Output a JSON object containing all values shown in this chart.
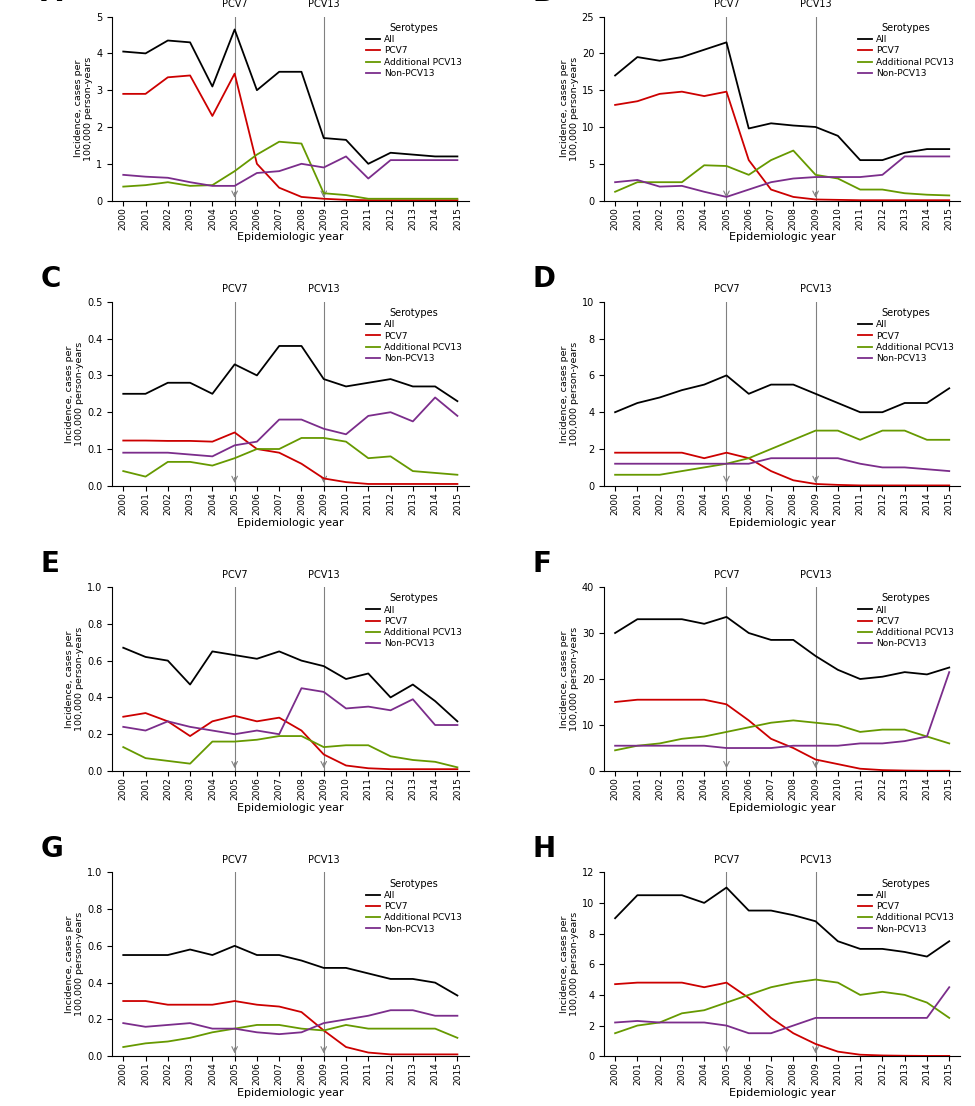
{
  "years": [
    2000,
    2001,
    2002,
    2003,
    2004,
    2005,
    2006,
    2007,
    2008,
    2009,
    2010,
    2011,
    2012,
    2013,
    2014,
    2015
  ],
  "pcv7_line": 2005,
  "pcv13_line": 2009,
  "panels": {
    "A": {
      "ylim": [
        0,
        5
      ],
      "yticks": [
        0,
        1,
        2,
        3,
        4,
        5
      ],
      "All": [
        4.05,
        4.0,
        4.35,
        4.3,
        3.1,
        4.65,
        3.0,
        3.5,
        3.5,
        1.7,
        1.65,
        1.0,
        1.3,
        1.25,
        1.2,
        1.2
      ],
      "PCV7": [
        2.9,
        2.9,
        3.35,
        3.4,
        2.3,
        3.45,
        1.0,
        0.35,
        0.1,
        0.05,
        0.02,
        0.01,
        0.01,
        0.01,
        0.01,
        0.01
      ],
      "AddPCV13": [
        0.38,
        0.42,
        0.5,
        0.4,
        0.42,
        0.8,
        1.25,
        1.6,
        1.55,
        0.2,
        0.15,
        0.05,
        0.05,
        0.05,
        0.05,
        0.05
      ],
      "NonPCV13": [
        0.7,
        0.65,
        0.62,
        0.5,
        0.4,
        0.4,
        0.75,
        0.8,
        1.0,
        0.9,
        1.2,
        0.6,
        1.1,
        1.1,
        1.1,
        1.1
      ]
    },
    "B": {
      "ylim": [
        0,
        25
      ],
      "yticks": [
        0,
        5,
        10,
        15,
        20,
        25
      ],
      "All": [
        17.0,
        19.5,
        19.0,
        19.5,
        20.5,
        21.5,
        9.8,
        10.5,
        10.2,
        10.0,
        8.8,
        5.5,
        5.5,
        6.5,
        7.0,
        7.0
      ],
      "PCV7": [
        13.0,
        13.5,
        14.5,
        14.8,
        14.2,
        14.8,
        5.5,
        1.5,
        0.5,
        0.15,
        0.1,
        0.05,
        0.05,
        0.05,
        0.05,
        0.05
      ],
      "AddPCV13": [
        1.2,
        2.5,
        2.5,
        2.5,
        4.8,
        4.7,
        3.5,
        5.5,
        6.8,
        3.5,
        3.0,
        1.5,
        1.5,
        1.0,
        0.8,
        0.7
      ],
      "NonPCV13": [
        2.5,
        2.8,
        1.9,
        2.0,
        1.2,
        0.5,
        1.5,
        2.5,
        3.0,
        3.2,
        3.2,
        3.2,
        3.5,
        6.0,
        6.0,
        6.0
      ]
    },
    "C": {
      "ylim": [
        0,
        0.5
      ],
      "yticks": [
        0,
        0.1,
        0.2,
        0.3,
        0.4,
        0.5
      ],
      "All": [
        0.25,
        0.25,
        0.28,
        0.28,
        0.25,
        0.33,
        0.3,
        0.38,
        0.38,
        0.29,
        0.27,
        0.28,
        0.29,
        0.27,
        0.27,
        0.23
      ],
      "PCV7": [
        0.123,
        0.123,
        0.122,
        0.122,
        0.12,
        0.145,
        0.1,
        0.09,
        0.06,
        0.02,
        0.01,
        0.005,
        0.005,
        0.005,
        0.005,
        0.005
      ],
      "AddPCV13": [
        0.04,
        0.025,
        0.065,
        0.065,
        0.055,
        0.075,
        0.1,
        0.1,
        0.13,
        0.13,
        0.12,
        0.075,
        0.08,
        0.04,
        0.035,
        0.03
      ],
      "NonPCV13": [
        0.09,
        0.09,
        0.09,
        0.085,
        0.08,
        0.11,
        0.12,
        0.18,
        0.18,
        0.155,
        0.14,
        0.19,
        0.2,
        0.175,
        0.24,
        0.19
      ]
    },
    "D": {
      "ylim": [
        0,
        10
      ],
      "yticks": [
        0,
        2,
        4,
        6,
        8,
        10
      ],
      "All": [
        4.0,
        4.5,
        4.8,
        5.2,
        5.5,
        6.0,
        5.0,
        5.5,
        5.5,
        5.0,
        4.5,
        4.0,
        4.0,
        4.5,
        4.5,
        5.3
      ],
      "PCV7": [
        1.8,
        1.8,
        1.8,
        1.8,
        1.5,
        1.8,
        1.5,
        0.8,
        0.3,
        0.1,
        0.05,
        0.02,
        0.02,
        0.02,
        0.02,
        0.02
      ],
      "AddPCV13": [
        0.6,
        0.6,
        0.6,
        0.8,
        1.0,
        1.2,
        1.5,
        2.0,
        2.5,
        3.0,
        3.0,
        2.5,
        3.0,
        3.0,
        2.5,
        2.5
      ],
      "NonPCV13": [
        1.2,
        1.2,
        1.2,
        1.2,
        1.2,
        1.2,
        1.2,
        1.5,
        1.5,
        1.5,
        1.5,
        1.2,
        1.0,
        1.0,
        0.9,
        0.8
      ]
    },
    "E": {
      "ylim": [
        0,
        1
      ],
      "yticks": [
        0,
        0.2,
        0.4,
        0.6,
        0.8,
        1.0
      ],
      "All": [
        0.67,
        0.62,
        0.6,
        0.47,
        0.65,
        0.63,
        0.61,
        0.65,
        0.6,
        0.57,
        0.5,
        0.53,
        0.4,
        0.47,
        0.38,
        0.27
      ],
      "PCV7": [
        0.295,
        0.315,
        0.27,
        0.19,
        0.27,
        0.3,
        0.27,
        0.29,
        0.22,
        0.09,
        0.03,
        0.015,
        0.01,
        0.01,
        0.01,
        0.01
      ],
      "AddPCV13": [
        0.13,
        0.07,
        0.055,
        0.04,
        0.16,
        0.16,
        0.17,
        0.19,
        0.19,
        0.13,
        0.14,
        0.14,
        0.08,
        0.06,
        0.05,
        0.02
      ],
      "NonPCV13": [
        0.24,
        0.22,
        0.27,
        0.24,
        0.22,
        0.2,
        0.22,
        0.2,
        0.45,
        0.43,
        0.34,
        0.35,
        0.33,
        0.39,
        0.25,
        0.25
      ]
    },
    "F": {
      "ylim": [
        0,
        40
      ],
      "yticks": [
        0,
        10,
        20,
        30,
        40
      ],
      "All": [
        30.0,
        33.0,
        33.0,
        33.0,
        32.0,
        33.5,
        30.0,
        28.5,
        28.5,
        25.0,
        22.0,
        20.0,
        20.5,
        21.5,
        21.0,
        22.5
      ],
      "PCV7": [
        15.0,
        15.5,
        15.5,
        15.5,
        15.5,
        14.5,
        11.0,
        7.0,
        5.0,
        2.5,
        1.5,
        0.5,
        0.2,
        0.1,
        0.05,
        0.05
      ],
      "AddPCV13": [
        4.5,
        5.5,
        6.0,
        7.0,
        7.5,
        8.5,
        9.5,
        10.5,
        11.0,
        10.5,
        10.0,
        8.5,
        9.0,
        9.0,
        7.5,
        6.0
      ],
      "NonPCV13": [
        5.5,
        5.5,
        5.5,
        5.5,
        5.5,
        5.0,
        5.0,
        5.0,
        5.5,
        5.5,
        5.5,
        6.0,
        6.0,
        6.5,
        7.5,
        21.5
      ]
    },
    "G": {
      "ylim": [
        0,
        1
      ],
      "yticks": [
        0,
        0.2,
        0.4,
        0.6,
        0.8,
        1.0
      ],
      "All": [
        0.55,
        0.55,
        0.55,
        0.58,
        0.55,
        0.6,
        0.55,
        0.55,
        0.52,
        0.48,
        0.48,
        0.45,
        0.42,
        0.42,
        0.4,
        0.33
      ],
      "PCV7": [
        0.3,
        0.3,
        0.28,
        0.28,
        0.28,
        0.3,
        0.28,
        0.27,
        0.24,
        0.14,
        0.05,
        0.02,
        0.01,
        0.01,
        0.01,
        0.01
      ],
      "AddPCV13": [
        0.05,
        0.07,
        0.08,
        0.1,
        0.13,
        0.15,
        0.17,
        0.17,
        0.15,
        0.14,
        0.17,
        0.15,
        0.15,
        0.15,
        0.15,
        0.1
      ],
      "NonPCV13": [
        0.18,
        0.16,
        0.17,
        0.18,
        0.15,
        0.15,
        0.13,
        0.12,
        0.13,
        0.18,
        0.2,
        0.22,
        0.25,
        0.25,
        0.22,
        0.22
      ]
    },
    "H": {
      "ylim": [
        0,
        12
      ],
      "yticks": [
        0,
        2,
        4,
        6,
        8,
        10,
        12
      ],
      "All": [
        9.0,
        10.5,
        10.5,
        10.5,
        10.0,
        11.0,
        9.5,
        9.5,
        9.2,
        8.8,
        7.5,
        7.0,
        7.0,
        6.8,
        6.5,
        7.5
      ],
      "PCV7": [
        4.7,
        4.8,
        4.8,
        4.8,
        4.5,
        4.8,
        3.8,
        2.5,
        1.5,
        0.8,
        0.3,
        0.1,
        0.05,
        0.03,
        0.02,
        0.02
      ],
      "AddPCV13": [
        1.5,
        2.0,
        2.2,
        2.8,
        3.0,
        3.5,
        4.0,
        4.5,
        4.8,
        5.0,
        4.8,
        4.0,
        4.2,
        4.0,
        3.5,
        2.5
      ],
      "NonPCV13": [
        2.2,
        2.3,
        2.2,
        2.2,
        2.2,
        2.0,
        1.5,
        1.5,
        2.0,
        2.5,
        2.5,
        2.5,
        2.5,
        2.5,
        2.5,
        4.5
      ]
    }
  },
  "colors": {
    "All": "#000000",
    "PCV7": "#cc0000",
    "AddPCV13": "#669900",
    "NonPCV13": "#7b2d8b"
  },
  "ylabel": "Incidence, cases per\n100,000 person-years",
  "xlabel": "Epidemiologic year"
}
